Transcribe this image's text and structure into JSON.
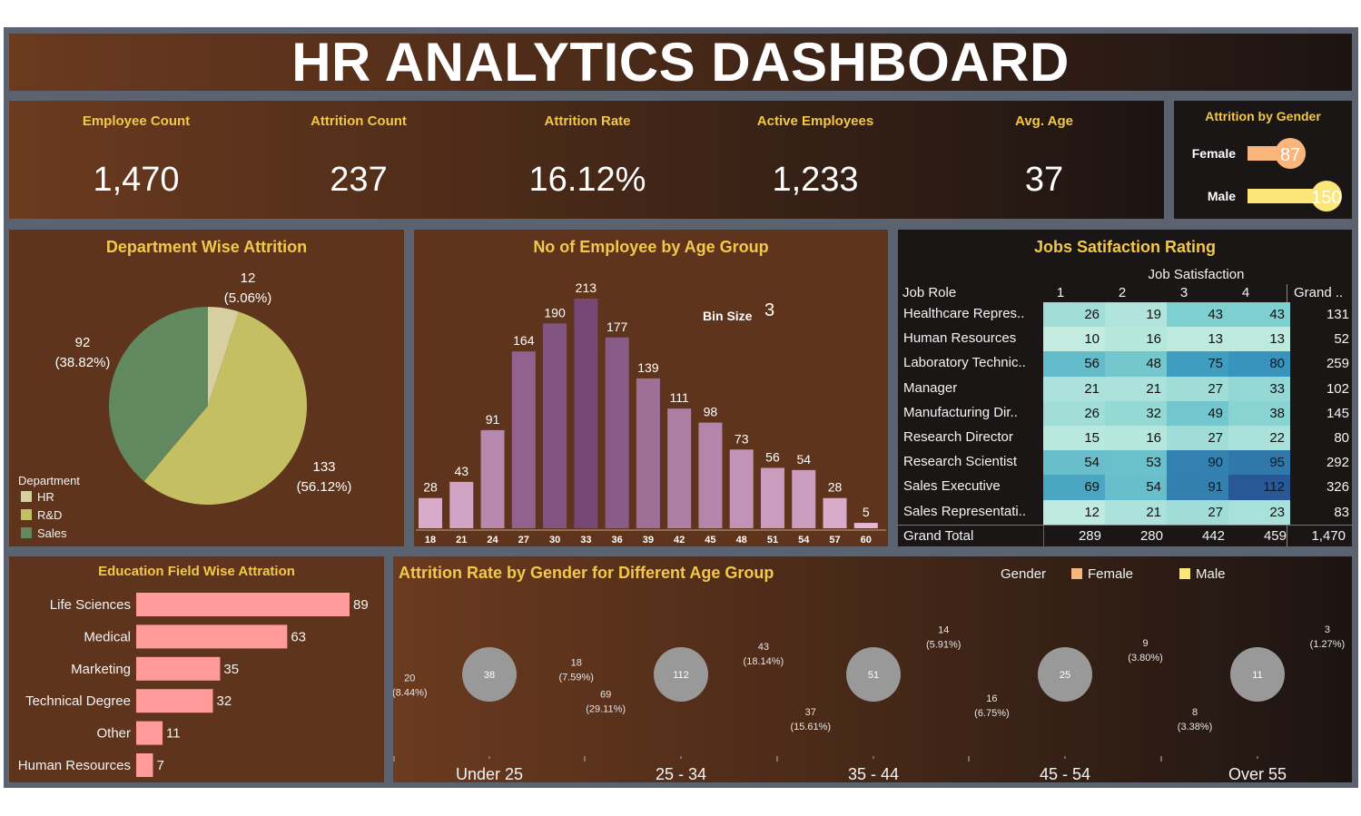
{
  "title": "HR ANALYTICS DASHBOARD",
  "kpis": [
    {
      "label": "Employee Count",
      "value": "1,470"
    },
    {
      "label": "Attrition Count",
      "value": "237"
    },
    {
      "label": "Attrition Rate",
      "value": "16.12%"
    },
    {
      "label": "Active Employees",
      "value": "1,233"
    },
    {
      "label": "Avg. Age",
      "value": "37"
    }
  ],
  "attrition_by_gender": {
    "title": "Attrition by Gender",
    "rows": [
      {
        "label": "Female",
        "value": "87",
        "color": "#f9b57b"
      },
      {
        "label": "Male",
        "value": "150",
        "color": "#fbe67a"
      }
    ]
  },
  "department_attrition": {
    "title": "Department Wise Attrition",
    "legend_title": "Department",
    "slices": [
      {
        "name": "HR",
        "value": "12",
        "pct": "(5.06%)",
        "color": "#d8cfa0"
      },
      {
        "name": "R&D",
        "value": "133",
        "pct": "(56.12%)",
        "color": "#c3bf62"
      },
      {
        "name": "Sales",
        "value": "92",
        "pct": "(38.82%)",
        "color": "#62885f"
      }
    ]
  },
  "age_group": {
    "title": "No of Employee by Age Group",
    "bin_label": "Bin Size",
    "bin_value": "3"
  },
  "job_satisfaction": {
    "title": "Jobs Satifaction Rating",
    "column_group": "Job Satisfaction",
    "row_header": "Job Role",
    "columns": [
      "1",
      "2",
      "3",
      "4",
      "Grand .."
    ],
    "roles": [
      "Healthcare Repres..",
      "Human Resources",
      "Laboratory Technic..",
      "Manager",
      "Manufacturing Dir..",
      "Research Director",
      "Research Scientist",
      "Sales Executive",
      "Sales Representati.."
    ],
    "values": [
      [
        26,
        19,
        43,
        43,
        131
      ],
      [
        10,
        16,
        13,
        13,
        52
      ],
      [
        56,
        48,
        75,
        80,
        259
      ],
      [
        21,
        21,
        27,
        33,
        102
      ],
      [
        26,
        32,
        49,
        38,
        145
      ],
      [
        15,
        16,
        27,
        22,
        80
      ],
      [
        54,
        53,
        90,
        95,
        292
      ],
      [
        69,
        54,
        91,
        112,
        326
      ],
      [
        12,
        21,
        27,
        23,
        83
      ]
    ],
    "grand_total_label": "Grand Total",
    "grand_totals": [
      "289",
      "280",
      "442",
      "459",
      "1,470"
    ]
  },
  "education": {
    "title": "Education Field Wise Attration"
  },
  "gender_age": {
    "title": "Attrition Rate by Gender for Different Age Group",
    "legend_title": "Gender",
    "legend": [
      {
        "name": "Female",
        "color": "#f9b57b"
      },
      {
        "name": "Male",
        "color": "#fbe67a"
      }
    ]
  },
  "chart_data": [
    {
      "type": "pie",
      "title": "Department Wise Attrition",
      "categories": [
        "HR",
        "R&D",
        "Sales"
      ],
      "values": [
        12,
        133,
        92
      ],
      "labels": [
        "12\n(5.06%)",
        "133\n(56.12%)",
        "92\n(38.82%)"
      ]
    },
    {
      "type": "bar",
      "title": "No of Employee by Age Group",
      "categories": [
        "18",
        "21",
        "24",
        "27",
        "30",
        "33",
        "36",
        "39",
        "42",
        "45",
        "48",
        "51",
        "54",
        "57",
        "60"
      ],
      "values": [
        28,
        43,
        91,
        164,
        190,
        213,
        177,
        139,
        111,
        98,
        73,
        56,
        54,
        28,
        5
      ],
      "ylim": [
        0,
        213
      ]
    },
    {
      "type": "bar",
      "orientation": "horizontal",
      "title": "Education Field Wise Attration",
      "categories": [
        "Life Sciences",
        "Medical",
        "Marketing",
        "Technical Degree",
        "Other",
        "Human Resources"
      ],
      "values": [
        89,
        63,
        35,
        32,
        11,
        7
      ],
      "color": "#ff9b9b"
    },
    {
      "type": "pie",
      "subtype": "donut",
      "title": "Attrition Rate by Gender for Different Age Group",
      "groups": [
        {
          "name": "Under 25",
          "total": 38,
          "female": 18,
          "female_pct": "(7.59%)",
          "male": 20,
          "male_pct": "(8.44%)"
        },
        {
          "name": "25 - 34",
          "total": 112,
          "female": 43,
          "female_pct": "(18.14%)",
          "male": 69,
          "male_pct": "(29.11%)"
        },
        {
          "name": "35 - 44",
          "total": 51,
          "female": 14,
          "female_pct": "(5.91%)",
          "male": 37,
          "male_pct": "(15.61%)"
        },
        {
          "name": "45 - 54",
          "total": 25,
          "female": 9,
          "female_pct": "(3.80%)",
          "male": 16,
          "male_pct": "(6.75%)"
        },
        {
          "name": "Over 55",
          "total": 11,
          "female": 3,
          "female_pct": "(1.27%)",
          "male": 8,
          "male_pct": "(3.38%)"
        }
      ]
    },
    {
      "type": "bar",
      "orientation": "horizontal",
      "title": "Attrition by Gender",
      "categories": [
        "Female",
        "Male"
      ],
      "values": [
        87,
        150
      ]
    }
  ]
}
